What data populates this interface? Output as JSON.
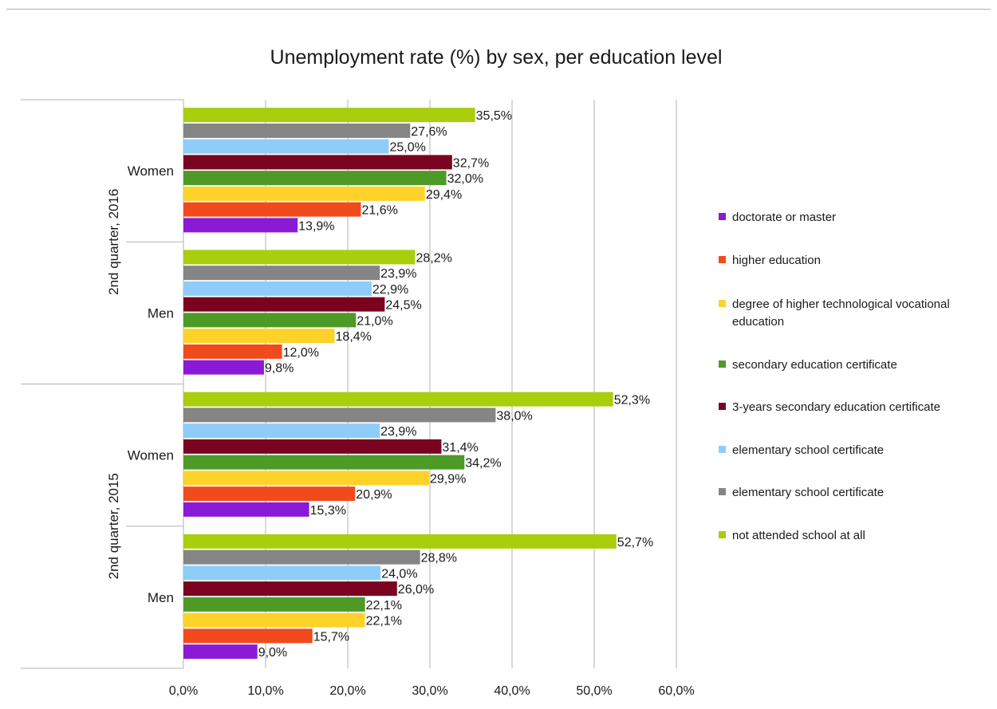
{
  "chart_data": {
    "type": "bar",
    "orientation": "horizontal",
    "title": "Unemployment rate (%) by sex, per education level",
    "xlim": [
      0,
      60
    ],
    "x_ticks": [
      "0,0%",
      "10,0%",
      "20,0%",
      "30,0%",
      "40,0%",
      "50,0%",
      "60,0%"
    ],
    "grid": true,
    "legend_position": "right",
    "groups": [
      {
        "period": "2nd quarter, 2016",
        "categories": [
          {
            "name": "Women",
            "values": [
              13.9,
              21.6,
              29.4,
              32.0,
              32.7,
              25.0,
              27.6,
              35.5
            ],
            "labels": [
              "13,9%",
              "21,6%",
              "29,4%",
              "32,0%",
              "32,7%",
              "25,0%",
              "27,6%",
              "35,5%"
            ]
          },
          {
            "name": "Men",
            "values": [
              9.8,
              12.0,
              18.4,
              21.0,
              24.5,
              22.9,
              23.9,
              28.2
            ],
            "labels": [
              "9,8%",
              "12,0%",
              "18,4%",
              "21,0%",
              "24,5%",
              "22,9%",
              "23,9%",
              "28,2%"
            ]
          }
        ]
      },
      {
        "period": "2nd quarter, 2015",
        "categories": [
          {
            "name": "Women",
            "values": [
              15.3,
              20.9,
              29.9,
              34.2,
              31.4,
              23.9,
              38.0,
              52.3
            ],
            "labels": [
              "15,3%",
              "20,9%",
              "29,9%",
              "34,2%",
              "31,4%",
              "23,9%",
              "38,0%",
              "52,3%"
            ]
          },
          {
            "name": "Men",
            "values": [
              9.0,
              15.7,
              22.1,
              22.1,
              26.0,
              24.0,
              28.8,
              52.7
            ],
            "labels": [
              "9,0%",
              "15,7%",
              "22,1%",
              "22,1%",
              "26,0%",
              "24,0%",
              "28,8%",
              "52,7%"
            ]
          }
        ]
      }
    ],
    "series": [
      {
        "name": "doctorate or master",
        "color": "#8b1ad6"
      },
      {
        "name": "higher education",
        "color": "#f14b1d"
      },
      {
        "name": "degree of higher technological vocational education",
        "color": "#ffd22a"
      },
      {
        "name": "secondary education certificate",
        "color": "#4e9a27"
      },
      {
        "name": "3-years secondary education certificate",
        "color": "#7a0420"
      },
      {
        "name": "elementary school certificate",
        "color": "#8ecdfa"
      },
      {
        "name": "elementary school certificate",
        "color": "#858585"
      },
      {
        "name": "not attended school at all",
        "color": "#aacd0e"
      }
    ]
  }
}
